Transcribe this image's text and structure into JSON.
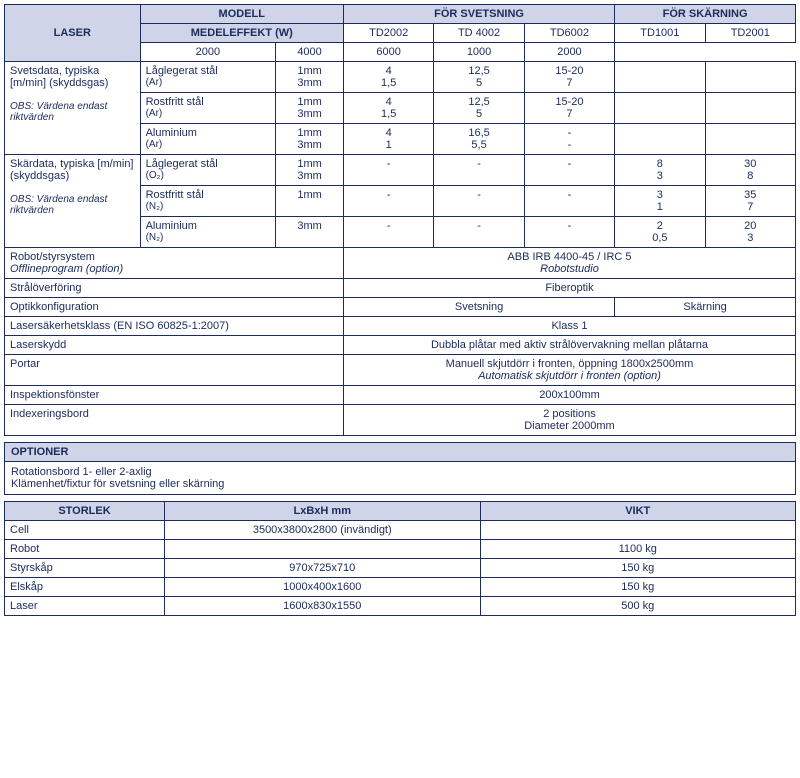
{
  "colors": {
    "text": "#1a2b5c",
    "header_bg": "#d0d4e8",
    "border": "#1a2b5c"
  },
  "main": {
    "laser_label": "LASER",
    "modell": "MODELL",
    "medeleffekt": "MEDELEFFEKT (W)",
    "welding_hdr": "FÖR SVETSNING",
    "cutting_hdr": "FÖR SKÄRNING",
    "models": [
      "TD2002",
      "TD 4002",
      "TD6002",
      "TD1001",
      "TD2001"
    ],
    "powers": [
      "2000",
      "4000",
      "6000",
      "1000",
      "2000"
    ],
    "svetsdata_title": "Svetsdata, typiska [m/min] (skyddsgas)",
    "svetsdata_note": "OBS: Värdena endast riktvärden",
    "skardata_title": "Skärdata, typiska [m/min] (skyddsgas)",
    "skardata_note": "OBS: Värdena endast riktvärden",
    "weld_rows": [
      {
        "mat": "Låglegerat stål",
        "gas": "(Ar)",
        "t1": "1mm",
        "t2": "3mm",
        "v": [
          [
            "4",
            "1,5"
          ],
          [
            "12,5",
            "5"
          ],
          [
            "15-20",
            "7"
          ],
          [
            "",
            ""
          ],
          [
            "",
            ""
          ]
        ]
      },
      {
        "mat": "Rostfritt stål",
        "gas": "(Ar)",
        "t1": "1mm",
        "t2": "3mm",
        "v": [
          [
            "4",
            "1,5"
          ],
          [
            "12,5",
            "5"
          ],
          [
            "15-20",
            "7"
          ],
          [
            "",
            ""
          ],
          [
            "",
            ""
          ]
        ]
      },
      {
        "mat": "Aluminium",
        "gas": "(Ar)",
        "t1": "1mm",
        "t2": "3mm",
        "v": [
          [
            "4",
            "1"
          ],
          [
            "16,5",
            "5,5"
          ],
          [
            "-",
            "-"
          ],
          [
            "",
            ""
          ],
          [
            "",
            ""
          ]
        ]
      }
    ],
    "cut_rows": [
      {
        "mat": "Låglegerat stål",
        "gas": "(O₂)",
        "t1": "1mm",
        "t2": "3mm",
        "v": [
          [
            "-",
            ""
          ],
          [
            "-",
            ""
          ],
          [
            "-",
            ""
          ],
          [
            "8",
            "3"
          ],
          [
            "30",
            "8"
          ]
        ]
      },
      {
        "mat": "Rostfritt stål",
        "gas": "(N₂)",
        "t1": "1mm",
        "t2": "",
        "v": [
          [
            "-",
            ""
          ],
          [
            "-",
            ""
          ],
          [
            "-",
            ""
          ],
          [
            "3",
            "1"
          ],
          [
            "35",
            "7"
          ]
        ]
      },
      {
        "mat": "Aluminium",
        "gas": "(N₂)",
        "t1": "3mm",
        "t2": "",
        "reversed": true,
        "v": [
          [
            "-",
            ""
          ],
          [
            "-",
            ""
          ],
          [
            "-",
            ""
          ],
          [
            "2",
            "0,5"
          ],
          [
            "20",
            "3"
          ]
        ]
      }
    ],
    "spec_rows": [
      {
        "label1": "Robot/styrsystem",
        "label2": "Offlineprogram (option)",
        "label2_italic": true,
        "val1": "ABB IRB 4400-45 / IRC 5",
        "val2": "Robotstudio",
        "val2_italic": true
      },
      {
        "label1": "Strålöverföring",
        "val1": "Fiberoptik"
      },
      {
        "label1": "Optikkonfiguration",
        "split": true,
        "left": "Svetsning",
        "right": "Skärning"
      },
      {
        "label1": "Lasersäkerhetsklass (EN ISO 60825-1:2007)",
        "val1": "Klass 1"
      },
      {
        "label1": "Laserskydd",
        "val1": "Dubbla plåtar med aktiv strålövervakning mellan plåtarna"
      },
      {
        "label1": "Portar",
        "val1": "Manuell skjutdörr i fronten, öppning 1800x2500mm",
        "val2": "Automatisk skjutdörr i fronten (option)",
        "val2_italic": true
      },
      {
        "label1": "Inspektionsfönster",
        "val1": "200x100mm"
      },
      {
        "label1": "Indexeringsbord",
        "val1": "2 positions",
        "val2": "Diameter 2000mm"
      }
    ]
  },
  "optioner": {
    "header": "OPTIONER",
    "lines": [
      "Rotationsbord 1- eller 2-axlig",
      "Klämenhet/fixtur för svetsning eller skärning"
    ]
  },
  "storlek": {
    "headers": [
      "STORLEK",
      "LxBxH mm",
      "VIKT"
    ],
    "rows": [
      [
        "Cell",
        "3500x3800x2800 (invändigt)",
        ""
      ],
      [
        "Robot",
        "",
        "1100 kg"
      ],
      [
        "Styrskåp",
        "970x725x710",
        "150 kg"
      ],
      [
        "Elskåp",
        "1000x400x1600",
        "150 kg"
      ],
      [
        "Laser",
        "1600x830x1550",
        "500 kg"
      ]
    ]
  }
}
